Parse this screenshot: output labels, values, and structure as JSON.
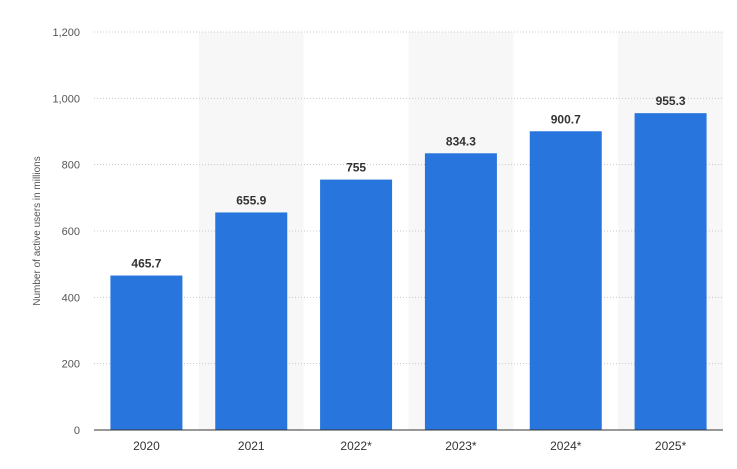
{
  "chart_data": {
    "type": "bar",
    "categories": [
      "2020",
      "2021",
      "2022*",
      "2023*",
      "2024*",
      "2025*"
    ],
    "values": [
      465.7,
      655.9,
      755,
      834.3,
      900.7,
      955.3
    ],
    "value_labels": [
      "465.7",
      "655.9",
      "755",
      "834.3",
      "900.7",
      "955.3"
    ],
    "y_ticks": [
      0,
      200,
      400,
      600,
      800,
      1000,
      1200
    ],
    "y_tick_labels": [
      "0",
      "200",
      "400",
      "600",
      "800",
      "1,000",
      "1,200"
    ],
    "ylim": [
      0,
      1200
    ],
    "ylabel": "Number of active users in millions",
    "xlabel": "",
    "title": "",
    "grid": true,
    "bar_color": "#2876dd",
    "band_color": "#f7f7f7",
    "grid_color": "#c8c8c8"
  }
}
